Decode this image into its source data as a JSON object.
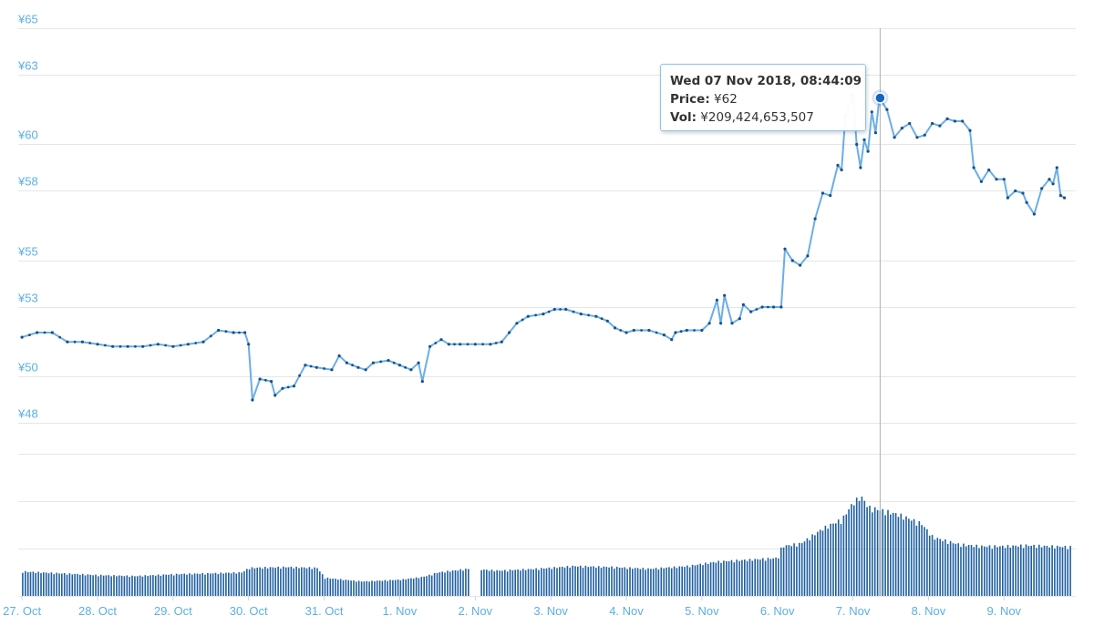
{
  "colors": {
    "line": "#6aaee6",
    "marker": "#1a4f86",
    "volume_bar": "#1f5fa0",
    "highlight_point": "#1565c0",
    "crosshair": "#b0b0b0",
    "axis_labels": "#5bb0e0",
    "grid": "#e6e6e6"
  },
  "tooltip": {
    "date": "Wed 07 Nov 2018, 08:44:09",
    "price_label": "Price:",
    "price_value": "¥62",
    "vol_label": "Vol:",
    "vol_value": "¥209,424,653,507"
  },
  "chart_data": {
    "type": "line",
    "currency_prefix": "¥",
    "x_unit": "days since 27 Oct 2018 00:00",
    "y_ticks": [
      48,
      50,
      53,
      55,
      58,
      60,
      63,
      65
    ],
    "ylim": [
      47.9,
      65
    ],
    "x_ticks": [
      {
        "x": 0,
        "label": "27. Oct"
      },
      {
        "x": 1,
        "label": "28. Oct"
      },
      {
        "x": 2,
        "label": "29. Oct"
      },
      {
        "x": 3,
        "label": "30. Oct"
      },
      {
        "x": 4,
        "label": "31. Oct"
      },
      {
        "x": 5,
        "label": "1. Nov"
      },
      {
        "x": 6,
        "label": "2. Nov"
      },
      {
        "x": 7,
        "label": "3. Nov"
      },
      {
        "x": 8,
        "label": "4. Nov"
      },
      {
        "x": 9,
        "label": "5. Nov"
      },
      {
        "x": 10,
        "label": "6. Nov"
      },
      {
        "x": 11,
        "label": "7. Nov"
      },
      {
        "x": 12,
        "label": "8. Nov"
      },
      {
        "x": 13,
        "label": "9. Nov"
      }
    ],
    "xlim": [
      -0.05,
      13.95
    ],
    "grid": true,
    "highlight": {
      "x": 11.36,
      "price": 62,
      "volume": 209424653507
    },
    "price_series": {
      "name": "Price",
      "points": [
        [
          0.0,
          51.7
        ],
        [
          0.2,
          51.9
        ],
        [
          0.4,
          51.9
        ],
        [
          0.6,
          51.5
        ],
        [
          0.8,
          51.5
        ],
        [
          1.0,
          51.4
        ],
        [
          1.2,
          51.3
        ],
        [
          1.4,
          51.3
        ],
        [
          1.6,
          51.3
        ],
        [
          1.8,
          51.4
        ],
        [
          2.0,
          51.3
        ],
        [
          2.2,
          51.4
        ],
        [
          2.4,
          51.5
        ],
        [
          2.6,
          52.0
        ],
        [
          2.8,
          51.9
        ],
        [
          2.95,
          51.9
        ],
        [
          3.0,
          51.4
        ],
        [
          3.05,
          49.0
        ],
        [
          3.15,
          49.9
        ],
        [
          3.3,
          49.8
        ],
        [
          3.35,
          49.2
        ],
        [
          3.45,
          49.5
        ],
        [
          3.6,
          49.6
        ],
        [
          3.75,
          50.5
        ],
        [
          3.9,
          50.4
        ],
        [
          4.1,
          50.3
        ],
        [
          4.2,
          50.9
        ],
        [
          4.3,
          50.6
        ],
        [
          4.45,
          50.4
        ],
        [
          4.55,
          50.3
        ],
        [
          4.65,
          50.6
        ],
        [
          4.85,
          50.7
        ],
        [
          5.0,
          50.5
        ],
        [
          5.15,
          50.3
        ],
        [
          5.25,
          50.6
        ],
        [
          5.3,
          49.8
        ],
        [
          5.4,
          51.3
        ],
        [
          5.55,
          51.6
        ],
        [
          5.65,
          51.4
        ],
        [
          5.8,
          51.4
        ],
        [
          6.0,
          51.4
        ],
        [
          6.2,
          51.4
        ],
        [
          6.35,
          51.5
        ],
        [
          6.45,
          51.9
        ],
        [
          6.55,
          52.3
        ],
        [
          6.7,
          52.6
        ],
        [
          6.9,
          52.7
        ],
        [
          7.05,
          52.9
        ],
        [
          7.2,
          52.9
        ],
        [
          7.4,
          52.7
        ],
        [
          7.6,
          52.6
        ],
        [
          7.75,
          52.4
        ],
        [
          7.85,
          52.1
        ],
        [
          8.0,
          51.9
        ],
        [
          8.1,
          52.0
        ],
        [
          8.3,
          52.0
        ],
        [
          8.5,
          51.8
        ],
        [
          8.6,
          51.6
        ],
        [
          8.65,
          51.9
        ],
        [
          8.8,
          52.0
        ],
        [
          9.0,
          52.0
        ],
        [
          9.1,
          52.3
        ],
        [
          9.2,
          53.3
        ],
        [
          9.25,
          52.3
        ],
        [
          9.3,
          53.5
        ],
        [
          9.4,
          52.3
        ],
        [
          9.5,
          52.5
        ],
        [
          9.55,
          53.1
        ],
        [
          9.65,
          52.8
        ],
        [
          9.8,
          53.0
        ],
        [
          9.95,
          53.0
        ],
        [
          10.05,
          53.0
        ],
        [
          10.1,
          55.5
        ],
        [
          10.2,
          55.0
        ],
        [
          10.3,
          54.8
        ],
        [
          10.4,
          55.2
        ],
        [
          10.5,
          56.8
        ],
        [
          10.6,
          57.9
        ],
        [
          10.7,
          57.8
        ],
        [
          10.8,
          59.1
        ],
        [
          10.85,
          58.9
        ],
        [
          10.9,
          61.2
        ],
        [
          11.0,
          62.1
        ],
        [
          11.05,
          60.0
        ],
        [
          11.1,
          59.0
        ],
        [
          11.15,
          60.2
        ],
        [
          11.2,
          59.7
        ],
        [
          11.25,
          61.4
        ],
        [
          11.3,
          60.5
        ],
        [
          11.35,
          62.0
        ],
        [
          11.45,
          61.5
        ],
        [
          11.55,
          60.3
        ],
        [
          11.65,
          60.7
        ],
        [
          11.75,
          60.9
        ],
        [
          11.85,
          60.3
        ],
        [
          11.95,
          60.4
        ],
        [
          12.05,
          60.9
        ],
        [
          12.15,
          60.8
        ],
        [
          12.25,
          61.1
        ],
        [
          12.35,
          61.0
        ],
        [
          12.45,
          61.0
        ],
        [
          12.55,
          60.6
        ],
        [
          12.6,
          59.0
        ],
        [
          12.7,
          58.4
        ],
        [
          12.8,
          58.9
        ],
        [
          12.9,
          58.5
        ],
        [
          13.0,
          58.5
        ],
        [
          13.05,
          57.7
        ],
        [
          13.15,
          58.0
        ],
        [
          13.25,
          57.9
        ],
        [
          13.3,
          57.5
        ],
        [
          13.4,
          57.0
        ],
        [
          13.5,
          58.1
        ],
        [
          13.6,
          58.5
        ],
        [
          13.65,
          58.3
        ],
        [
          13.7,
          59.0
        ],
        [
          13.75,
          57.8
        ],
        [
          13.8,
          57.7
        ]
      ]
    },
    "volume_series": {
      "name": "Vol",
      "points": [
        [
          0.0,
          27
        ],
        [
          0.5,
          25
        ],
        [
          1.0,
          23
        ],
        [
          1.5,
          22
        ],
        [
          2.0,
          24
        ],
        [
          2.5,
          25
        ],
        [
          2.9,
          26
        ],
        [
          3.0,
          31
        ],
        [
          3.5,
          32
        ],
        [
          3.9,
          31
        ],
        [
          4.0,
          20
        ],
        [
          4.5,
          16
        ],
        [
          5.0,
          18
        ],
        [
          5.3,
          21
        ],
        [
          5.5,
          26
        ],
        [
          5.8,
          29
        ],
        [
          5.9,
          30
        ],
        [
          6.3,
          28
        ],
        [
          6.8,
          30
        ],
        [
          7.3,
          33
        ],
        [
          7.8,
          32
        ],
        [
          8.3,
          30
        ],
        [
          8.8,
          33
        ],
        [
          9.2,
          38
        ],
        [
          9.6,
          40
        ],
        [
          10.0,
          42
        ],
        [
          10.05,
          55
        ],
        [
          10.3,
          58
        ],
        [
          10.6,
          75
        ],
        [
          10.85,
          85
        ],
        [
          11.0,
          104
        ],
        [
          11.1,
          110
        ],
        [
          11.2,
          98
        ],
        [
          11.36,
          95
        ],
        [
          11.6,
          90
        ],
        [
          11.9,
          80
        ],
        [
          12.05,
          65
        ],
        [
          12.4,
          57
        ],
        [
          12.7,
          55
        ],
        [
          13.0,
          55
        ],
        [
          13.3,
          56
        ],
        [
          13.6,
          55
        ],
        [
          13.95,
          54
        ]
      ]
    }
  }
}
